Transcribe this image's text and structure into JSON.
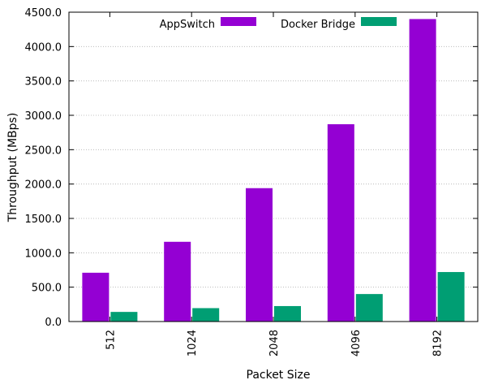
{
  "chart_data": {
    "type": "bar",
    "xlabel": "Packet Size",
    "ylabel": "Throughput (MBps)",
    "categories": [
      "512",
      "1024",
      "2048",
      "4096",
      "8192"
    ],
    "series": [
      {
        "name": "AppSwitch",
        "color": "#9400d3",
        "values": [
          710,
          1160,
          1940,
          2870,
          4400
        ]
      },
      {
        "name": "Docker Bridge",
        "color": "#009e73",
        "values": [
          140,
          195,
          225,
          400,
          720
        ]
      }
    ],
    "ylim": [
      0,
      4500
    ],
    "yticks": [
      "0.0",
      "500.0",
      "1000.0",
      "1500.0",
      "2000.0",
      "2500.0",
      "3000.0",
      "3500.0",
      "4000.0",
      "4500.0"
    ],
    "grid": true,
    "legend_position": "top"
  }
}
